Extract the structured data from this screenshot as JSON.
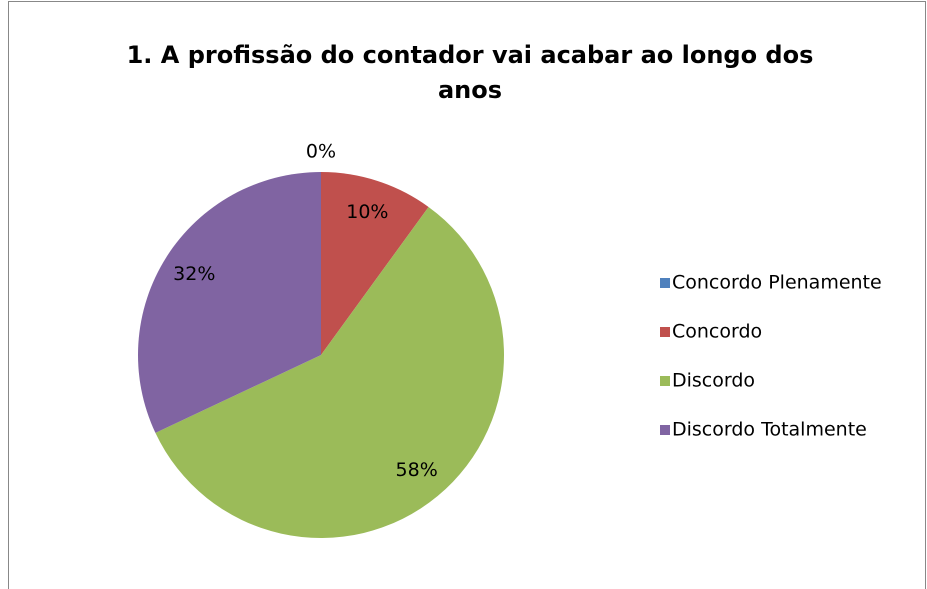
{
  "chart_data": {
    "type": "pie",
    "title": "1. A profissão do contador vai acabar ao longo dos anos",
    "categories": [
      "Concordo Plenamente",
      "Concordo",
      "Discordo",
      "Discordo Totalmente"
    ],
    "values": [
      0,
      10,
      58,
      32
    ],
    "value_labels": [
      "0%",
      "10%",
      "58%",
      "32%"
    ],
    "colors": [
      "#4f81bd",
      "#c0504d",
      "#9bbb59",
      "#8064a2"
    ],
    "legend": "right"
  }
}
